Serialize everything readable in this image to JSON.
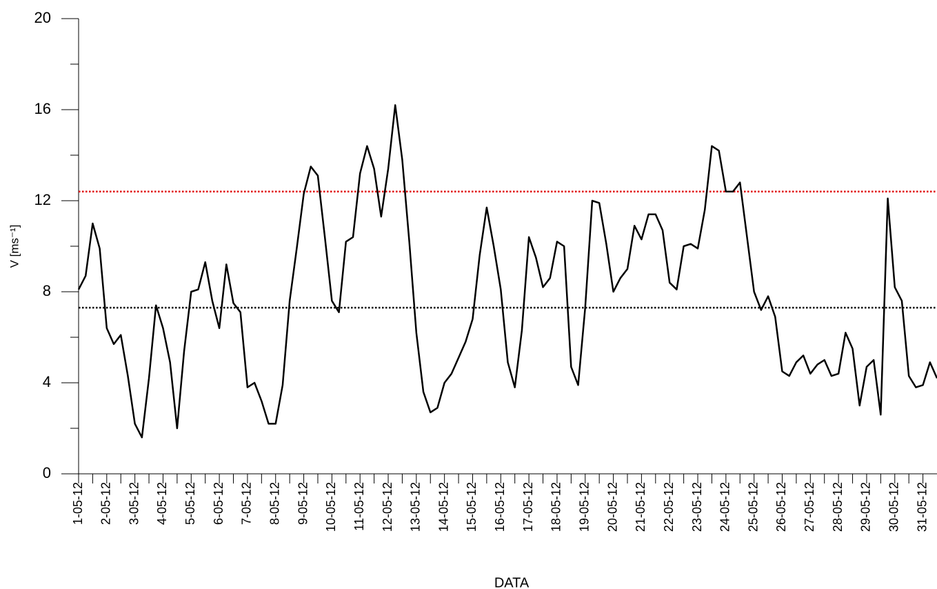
{
  "chart_data": {
    "type": "line",
    "x_label": "DATA",
    "y_label": "V [ms⁻¹]",
    "x": [
      1,
      1.25,
      1.5,
      1.75,
      2,
      2.25,
      2.5,
      2.75,
      3,
      3.25,
      3.5,
      3.75,
      4,
      4.25,
      4.5,
      4.75,
      5,
      5.25,
      5.5,
      5.75,
      6,
      6.25,
      6.5,
      6.75,
      7,
      7.25,
      7.5,
      7.75,
      8,
      8.25,
      8.5,
      8.75,
      9,
      9.25,
      9.5,
      9.75,
      10,
      10.25,
      10.5,
      10.75,
      11,
      11.25,
      11.5,
      11.75,
      12,
      12.25,
      12.5,
      12.75,
      13,
      13.25,
      13.5,
      13.75,
      14,
      14.25,
      14.5,
      14.75,
      15,
      15.25,
      15.5,
      15.75,
      16,
      16.25,
      16.5,
      16.75,
      17,
      17.25,
      17.5,
      17.75,
      18,
      18.25,
      18.5,
      18.75,
      19,
      19.25,
      19.5,
      19.75,
      20,
      20.25,
      20.5,
      20.75,
      21,
      21.25,
      21.5,
      21.75,
      22,
      22.25,
      22.5,
      22.75,
      23,
      23.25,
      23.5,
      23.75,
      24,
      24.25,
      24.5,
      24.75,
      25,
      25.25,
      25.5,
      25.75,
      26,
      26.25,
      26.5,
      26.75,
      27,
      27.25,
      27.5,
      27.75,
      28,
      28.25,
      28.5,
      28.75,
      29,
      29.25,
      29.5,
      29.75,
      30,
      30.25,
      30.5,
      30.75,
      31,
      31.25,
      31.5
    ],
    "series": [
      {
        "color": "#000000",
        "values": [
          8.1,
          8.7,
          11.0,
          9.9,
          6.4,
          5.7,
          6.1,
          4.3,
          2.2,
          1.6,
          4.2,
          7.4,
          6.4,
          4.9,
          2.0,
          5.4,
          8.0,
          8.1,
          9.3,
          7.6,
          6.4,
          9.2,
          7.5,
          7.1,
          3.8,
          4.0,
          3.2,
          2.2,
          2.2,
          3.9,
          7.6,
          9.9,
          12.3,
          13.5,
          13.1,
          10.4,
          7.6,
          7.1,
          10.2,
          10.4,
          13.2,
          14.4,
          13.4,
          11.3,
          13.4,
          16.2,
          13.8,
          10.2,
          6.2,
          3.6,
          2.7,
          2.9,
          4.0,
          4.4,
          5.1,
          5.8,
          6.8,
          9.6,
          11.7,
          10.0,
          8.1,
          4.9,
          3.8,
          6.3,
          10.4,
          9.5,
          8.2,
          8.6,
          10.2,
          10.0,
          4.7,
          3.9,
          7.3,
          12.0,
          11.9,
          10.1,
          8.0,
          8.6,
          9.0,
          10.9,
          10.3,
          11.4,
          11.4,
          10.7,
          8.4,
          8.1,
          10.0,
          10.1,
          9.9,
          11.6,
          14.4,
          14.2,
          12.4,
          12.4,
          12.8,
          10.4,
          8.0,
          7.2,
          7.8,
          6.9,
          4.5,
          4.3,
          4.9,
          5.2,
          4.4,
          4.8,
          5.0,
          4.3,
          4.4,
          6.2,
          5.5,
          3.0,
          4.7,
          5.0,
          2.6,
          12.1,
          8.2,
          7.6,
          4.3,
          3.8,
          3.9,
          4.9,
          4.2
        ]
      }
    ],
    "reference_lines": [
      {
        "value": 12.4,
        "color": "#e00000"
      },
      {
        "value": 7.3,
        "color": "#000000"
      }
    ],
    "xlim": [
      1,
      31.5
    ],
    "xticks": [
      {
        "value": 1,
        "label": "1-05-12"
      },
      {
        "value": 2,
        "label": "2-05-12"
      },
      {
        "value": 3,
        "label": "3-05-12"
      },
      {
        "value": 4,
        "label": "4-05-12"
      },
      {
        "value": 5,
        "label": "5-05-12"
      },
      {
        "value": 6,
        "label": "6-05-12"
      },
      {
        "value": 7,
        "label": "7-05-12"
      },
      {
        "value": 8,
        "label": "8-05-12"
      },
      {
        "value": 9,
        "label": "9-05-12"
      },
      {
        "value": 10,
        "label": "10-05-12"
      },
      {
        "value": 11,
        "label": "11-05-12"
      },
      {
        "value": 12,
        "label": "12-05-12"
      },
      {
        "value": 13,
        "label": "13-05-12"
      },
      {
        "value": 14,
        "label": "14-05-12"
      },
      {
        "value": 15,
        "label": "15-05-12"
      },
      {
        "value": 16,
        "label": "16-05-12"
      },
      {
        "value": 17,
        "label": "17-05-12"
      },
      {
        "value": 18,
        "label": "18-05-12"
      },
      {
        "value": 19,
        "label": "19-05-12"
      },
      {
        "value": 20,
        "label": "20-05-12"
      },
      {
        "value": 21,
        "label": "21-05-12"
      },
      {
        "value": 22,
        "label": "22-05-12"
      },
      {
        "value": 23,
        "label": "23-05-12"
      },
      {
        "value": 24,
        "label": "24-05-12"
      },
      {
        "value": 25,
        "label": "25-05-12"
      },
      {
        "value": 26,
        "label": "26-05-12"
      },
      {
        "value": 27,
        "label": "27-05-12"
      },
      {
        "value": 28,
        "label": "28-05-12"
      },
      {
        "value": 29,
        "label": "29-05-12"
      },
      {
        "value": 30,
        "label": "30-05-12"
      },
      {
        "value": 31,
        "label": "31-05-12"
      }
    ],
    "x_minor_ticks": [
      1.5,
      2.5,
      3.5,
      4.5,
      5.5,
      6.5,
      7.5,
      8.5,
      9.5,
      10.5,
      11.5,
      12.5,
      13.5,
      14.5,
      15.5,
      16.5,
      17.5,
      18.5,
      19.5,
      20.5,
      21.5,
      22.5,
      23.5,
      24.5,
      25.5,
      26.5,
      27.5,
      28.5,
      29.5,
      30.5
    ],
    "ylim": [
      0,
      20
    ],
    "yticks": [
      0,
      4,
      8,
      12,
      16,
      20
    ],
    "y_minor_ticks": [
      2,
      6,
      10,
      14,
      18
    ],
    "grid": false
  }
}
